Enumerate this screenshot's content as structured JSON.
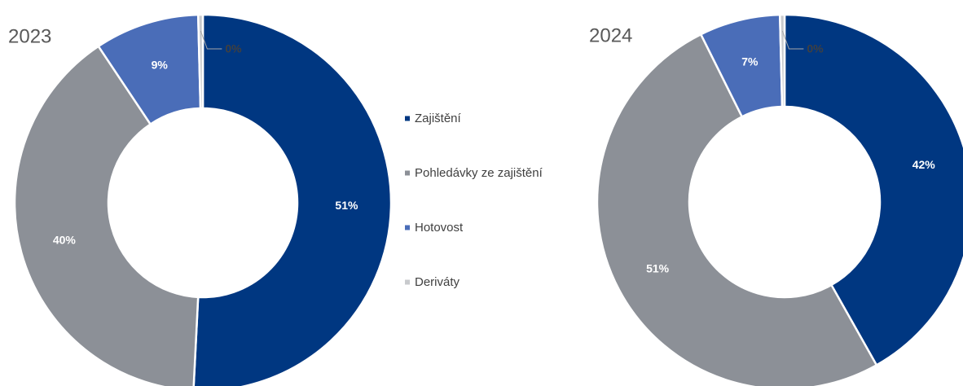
{
  "chart_data": [
    {
      "type": "donut",
      "title": "2023",
      "categories": [
        "Zajištění",
        "Pohledávky ze zajištění",
        "Hotovost",
        "Deriváty"
      ],
      "values": [
        51,
        40,
        9,
        0.4
      ],
      "value_labels": [
        "51%",
        "40%",
        "9%",
        "0%"
      ],
      "colors": [
        "#003781",
        "#8c9097",
        "#4a6db8",
        "#c8cacd"
      ],
      "legend": "right"
    },
    {
      "type": "donut",
      "title": "2024",
      "categories": [
        "Zajištění",
        "Pohledávky ze zajištění",
        "Hotovost",
        "Deriváty"
      ],
      "values": [
        42,
        51,
        7,
        0.4
      ],
      "value_labels": [
        "42%",
        "51%",
        "7%",
        "0%"
      ],
      "colors": [
        "#003781",
        "#8c9097",
        "#4a6db8",
        "#c8cacd"
      ]
    }
  ]
}
